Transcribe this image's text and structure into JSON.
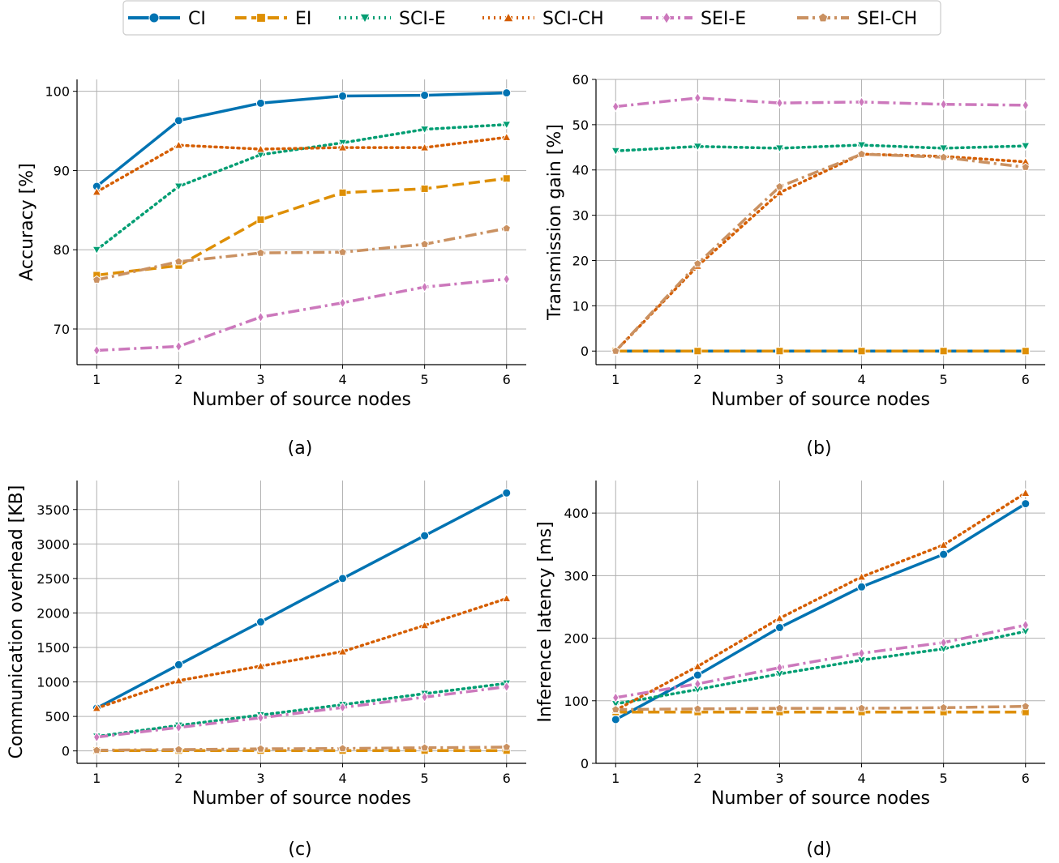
{
  "legend": {
    "entries": [
      {
        "key": "CI",
        "label": "CI",
        "color": "#0173b2",
        "dash": "",
        "marker": "circle"
      },
      {
        "key": "EI",
        "label": "EI",
        "color": "#de8f05",
        "dash": "14,6",
        "marker": "square"
      },
      {
        "key": "SCIE",
        "label": "SCI-E",
        "color": "#029e73",
        "dash": "2,5",
        "marker": "triangle-down"
      },
      {
        "key": "SCICH",
        "label": "SCI-CH",
        "color": "#d55e00",
        "dash": "2,5",
        "marker": "triangle-up"
      },
      {
        "key": "SEIE",
        "label": "SEI-E",
        "color": "#cc78bc",
        "dash": "14,5,3,5",
        "marker": "diamond"
      },
      {
        "key": "SEICH",
        "label": "SEI-CH",
        "color": "#ca9161",
        "dash": "14,5,3,5",
        "marker": "pentagon"
      }
    ]
  },
  "chart_data": [
    {
      "type": "line",
      "caption": "(a)",
      "xlabel": "Number of source nodes",
      "ylabel": "Accuracy [%]",
      "x": [
        1,
        2,
        3,
        4,
        5,
        6
      ],
      "xlim": [
        0.76,
        6.24
      ],
      "ylim": [
        65.5,
        101.5
      ],
      "yticks": [
        70,
        80,
        90,
        100
      ],
      "grid": true,
      "series": [
        {
          "name": "CI",
          "values": [
            88.0,
            96.3,
            98.5,
            99.4,
            99.5,
            99.8
          ]
        },
        {
          "name": "EI",
          "values": [
            76.8,
            78.0,
            83.8,
            87.2,
            87.7,
            89.0
          ]
        },
        {
          "name": "SCI-E",
          "values": [
            80.0,
            88.0,
            92.0,
            93.5,
            95.2,
            95.8
          ]
        },
        {
          "name": "SCI-CH",
          "values": [
            87.3,
            93.2,
            92.7,
            92.9,
            92.9,
            94.2
          ]
        },
        {
          "name": "SEI-E",
          "values": [
            67.3,
            67.8,
            71.5,
            73.3,
            75.3,
            76.3
          ]
        },
        {
          "name": "SEI-CH",
          "values": [
            76.2,
            78.5,
            79.6,
            79.7,
            80.7,
            82.7
          ]
        }
      ]
    },
    {
      "type": "line",
      "caption": "(b)",
      "xlabel": "Number of source nodes",
      "ylabel": "Transmission gain [%]",
      "x": [
        1,
        2,
        3,
        4,
        5,
        6
      ],
      "xlim": [
        0.76,
        6.24
      ],
      "ylim": [
        -3.0,
        60.0
      ],
      "yticks": [
        0,
        10,
        20,
        30,
        40,
        50,
        60
      ],
      "grid": true,
      "series": [
        {
          "name": "CI",
          "values": [
            0,
            0,
            0,
            0,
            0,
            0
          ]
        },
        {
          "name": "EI",
          "values": [
            0,
            0,
            0,
            0,
            0,
            0
          ]
        },
        {
          "name": "SCI-E",
          "values": [
            44.2,
            45.2,
            44.8,
            45.5,
            44.8,
            45.3
          ]
        },
        {
          "name": "SCI-CH",
          "values": [
            0,
            18.8,
            35.0,
            43.5,
            43.0,
            41.8
          ]
        },
        {
          "name": "SEI-E",
          "values": [
            54.0,
            55.9,
            54.8,
            55.0,
            54.5,
            54.3
          ]
        },
        {
          "name": "SEI-CH",
          "values": [
            0,
            19.3,
            36.3,
            43.5,
            42.8,
            40.6
          ]
        }
      ]
    },
    {
      "type": "line",
      "caption": "(c)",
      "xlabel": "Number of source nodes",
      "ylabel": "Communication overhead [KB]",
      "x": [
        1,
        2,
        3,
        4,
        5,
        6
      ],
      "xlim": [
        0.76,
        6.24
      ],
      "ylim": [
        -180,
        3920
      ],
      "yticks": [
        0,
        500,
        1000,
        1500,
        2000,
        2500,
        3000,
        3500
      ],
      "grid": true,
      "series": [
        {
          "name": "CI",
          "values": [
            620,
            1250,
            1870,
            2500,
            3120,
            3740
          ]
        },
        {
          "name": "EI",
          "values": [
            5,
            5,
            5,
            5,
            5,
            5
          ]
        },
        {
          "name": "SCI-E",
          "values": [
            210,
            370,
            520,
            670,
            830,
            980
          ]
        },
        {
          "name": "SCI-CH",
          "values": [
            620,
            1020,
            1230,
            1440,
            1820,
            2210
          ]
        },
        {
          "name": "SEI-E",
          "values": [
            200,
            340,
            480,
            630,
            780,
            930
          ]
        },
        {
          "name": "SEI-CH",
          "values": [
            10,
            20,
            30,
            35,
            45,
            55
          ]
        }
      ]
    },
    {
      "type": "line",
      "caption": "(d)",
      "xlabel": "Number of source nodes",
      "ylabel": "Inference latency [ms]",
      "x": [
        1,
        2,
        3,
        4,
        5,
        6
      ],
      "xlim": [
        0.76,
        6.24
      ],
      "ylim": [
        0,
        452
      ],
      "yticks": [
        0,
        100,
        200,
        300,
        400
      ],
      "grid": true,
      "series": [
        {
          "name": "CI",
          "values": [
            70,
            141,
            217,
            282,
            334,
            415
          ]
        },
        {
          "name": "EI",
          "values": [
            82,
            82,
            82,
            82,
            82,
            82
          ]
        },
        {
          "name": "SCI-E",
          "values": [
            95,
            118,
            143,
            165,
            183,
            211
          ]
        },
        {
          "name": "SCI-CH",
          "values": [
            85,
            155,
            232,
            298,
            349,
            432
          ]
        },
        {
          "name": "SEI-E",
          "values": [
            105,
            127,
            153,
            176,
            193,
            221
          ]
        },
        {
          "name": "SEI-CH",
          "values": [
            86,
            87,
            88,
            88,
            89,
            91
          ]
        }
      ]
    }
  ]
}
